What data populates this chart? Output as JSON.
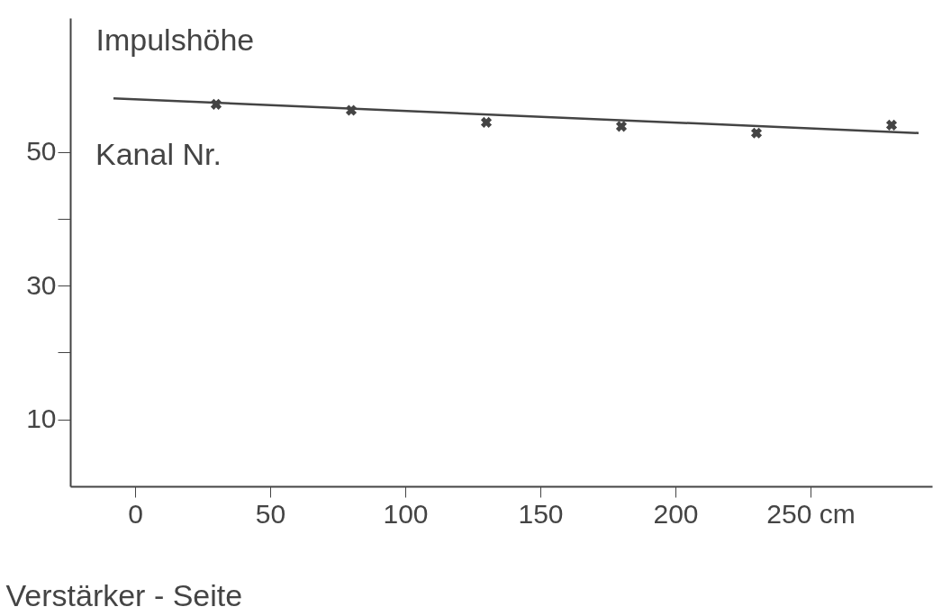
{
  "chart_data": {
    "type": "scatter",
    "xlabel": "Verstärker - Seite",
    "ylabel": "Impulshöhe",
    "annotations": [
      "Kanal Nr."
    ],
    "x": [
      30,
      80,
      130,
      180,
      230,
      280
    ],
    "series": [
      {
        "type": "scatter",
        "color": "#444444",
        "values": [
          57.1,
          56.2,
          54.4,
          53.8,
          52.8,
          54.0
        ]
      },
      {
        "type": "line",
        "color": "#444444",
        "marker": "none",
        "x": [
          -8,
          290
        ],
        "values": [
          58.0,
          52.8
        ]
      }
    ],
    "marker": "cross",
    "line_style": "solid",
    "grid": false,
    "xlim": [
      -24,
      295
    ],
    "xticks": [
      0,
      50,
      100,
      150,
      200,
      {
        "value": 250,
        "label": "250 cm"
      }
    ],
    "ylim": [
      0,
      70
    ],
    "yticks": [
      {
        "value": 10,
        "label": "10"
      },
      {
        "value": 20,
        "label": null
      },
      {
        "value": 30,
        "label": "30"
      },
      {
        "value": 40,
        "label": null
      },
      {
        "value": 50,
        "label": "50"
      }
    ]
  }
}
